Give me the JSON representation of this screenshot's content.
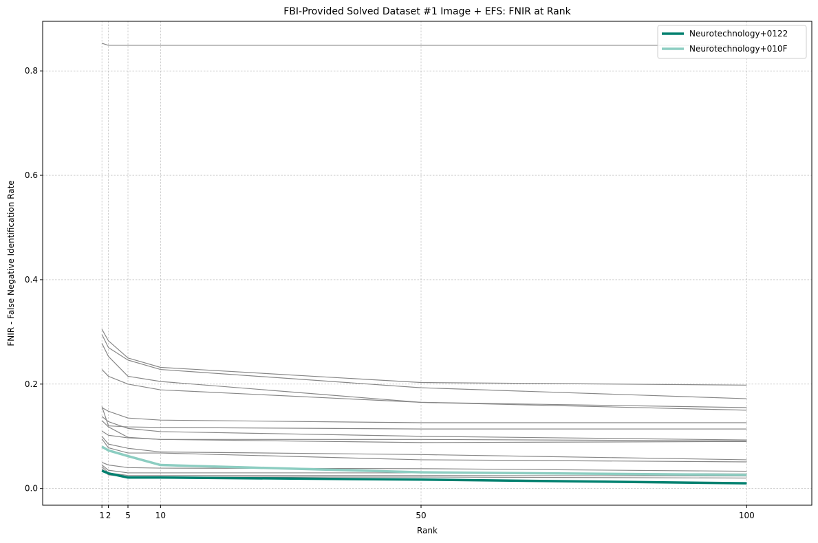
{
  "chart_data": {
    "type": "line",
    "title": "FBI-Provided Solved Dataset #1 Image + EFS: FNIR at Rank",
    "xlabel": "Rank",
    "ylabel": "FNIR - False Negative Identification Rate",
    "xlim": [
      -8.1,
      110
    ],
    "ylim": [
      -0.032,
      0.895
    ],
    "xticks": [
      1,
      2,
      5,
      10,
      50,
      100
    ],
    "yticks": [
      0.0,
      0.2,
      0.4,
      0.6,
      0.8
    ],
    "ytick_labels": [
      "0.0",
      "0.2",
      "0.4",
      "0.6",
      "0.8"
    ],
    "grid": true,
    "legend_position": "top-right",
    "x": [
      1,
      2,
      5,
      10,
      50,
      100
    ],
    "colors": {
      "background_series": "#888888",
      "neuro_0122": "#00806f",
      "neuro_010F": "#8ccdc1",
      "grid": "#b0b0b0"
    },
    "background_series": [
      {
        "values": [
          0.853,
          0.849,
          0.849,
          0.849,
          0.849,
          0.849
        ]
      },
      {
        "values": [
          0.305,
          0.283,
          0.25,
          0.232,
          0.203,
          0.198
        ]
      },
      {
        "values": [
          0.295,
          0.27,
          0.246,
          0.228,
          0.193,
          0.172
        ]
      },
      {
        "values": [
          0.278,
          0.253,
          0.215,
          0.205,
          0.165,
          0.155
        ]
      },
      {
        "values": [
          0.228,
          0.215,
          0.2,
          0.189,
          0.165,
          0.15
        ]
      },
      {
        "values": [
          0.155,
          0.148,
          0.135,
          0.131,
          0.126,
          0.126
        ]
      },
      {
        "values": [
          0.157,
          0.12,
          0.118,
          0.117,
          0.114,
          0.114
        ]
      },
      {
        "values": [
          0.138,
          0.128,
          0.115,
          0.109,
          0.1,
          0.093
        ]
      },
      {
        "values": [
          0.13,
          0.118,
          0.098,
          0.094,
          0.094,
          0.091
        ]
      },
      {
        "values": [
          0.11,
          0.102,
          0.097,
          0.094,
          0.088,
          0.09
        ]
      },
      {
        "values": [
          0.1,
          0.085,
          0.077,
          0.07,
          0.065,
          0.055
        ]
      },
      {
        "values": [
          0.095,
          0.078,
          0.068,
          0.068,
          0.055,
          0.051
        ]
      },
      {
        "values": [
          0.05,
          0.045,
          0.04,
          0.039,
          0.038,
          0.033
        ]
      },
      {
        "values": [
          0.045,
          0.035,
          0.03,
          0.03,
          0.03,
          0.028
        ]
      },
      {
        "values": [
          0.042,
          0.03,
          0.025,
          0.025,
          0.025,
          0.024
        ]
      },
      {
        "values": [
          0.038,
          0.026,
          0.022,
          0.022,
          0.022,
          0.02
        ]
      }
    ],
    "series": [
      {
        "name": "Neurotechnology+0122",
        "values": [
          0.034,
          0.029,
          0.021,
          0.021,
          0.017,
          0.01
        ]
      },
      {
        "name": "Neurotechnology+010F",
        "values": [
          0.08,
          0.073,
          0.062,
          0.045,
          0.031,
          0.026
        ]
      }
    ]
  }
}
